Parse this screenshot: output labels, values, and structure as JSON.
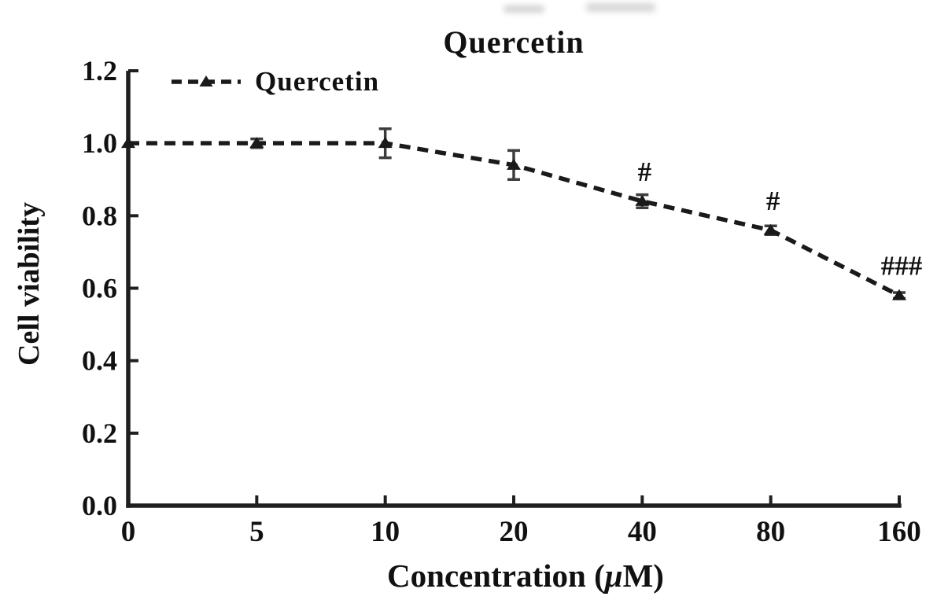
{
  "chart_data": {
    "type": "line",
    "title": "Quercetin",
    "xlabel": "Concentration (μM)",
    "xlabel_parts": {
      "prefix": "Concentration (",
      "mu": "μ",
      "suffix": "M)"
    },
    "ylabel": "Cell viability",
    "categories": [
      "0",
      "5",
      "10",
      "20",
      "40",
      "80",
      "160"
    ],
    "series": [
      {
        "name": "Quercetin",
        "values": [
          1.0,
          1.0,
          1.0,
          0.94,
          0.84,
          0.76,
          0.58
        ],
        "errors": [
          0,
          0.012,
          0.04,
          0.04,
          0.018,
          0.012,
          0.008
        ],
        "marker": "triangle",
        "line_style": "dashed",
        "color": "#1a1a1a"
      }
    ],
    "annotations": [
      {
        "category_index": 4,
        "text": "#"
      },
      {
        "category_index": 5,
        "text": "#"
      },
      {
        "category_index": 6,
        "text": "###"
      }
    ],
    "yticks": [
      "0.0",
      "0.2",
      "0.4",
      "0.6",
      "0.8",
      "1.0",
      "1.2"
    ],
    "ylim": [
      0.0,
      1.2
    ],
    "grid": false,
    "legend_position": "top-left",
    "axis_color": "#1f1f1f",
    "error_bar_color": "#3d3d3d",
    "background": "#ffffff"
  }
}
